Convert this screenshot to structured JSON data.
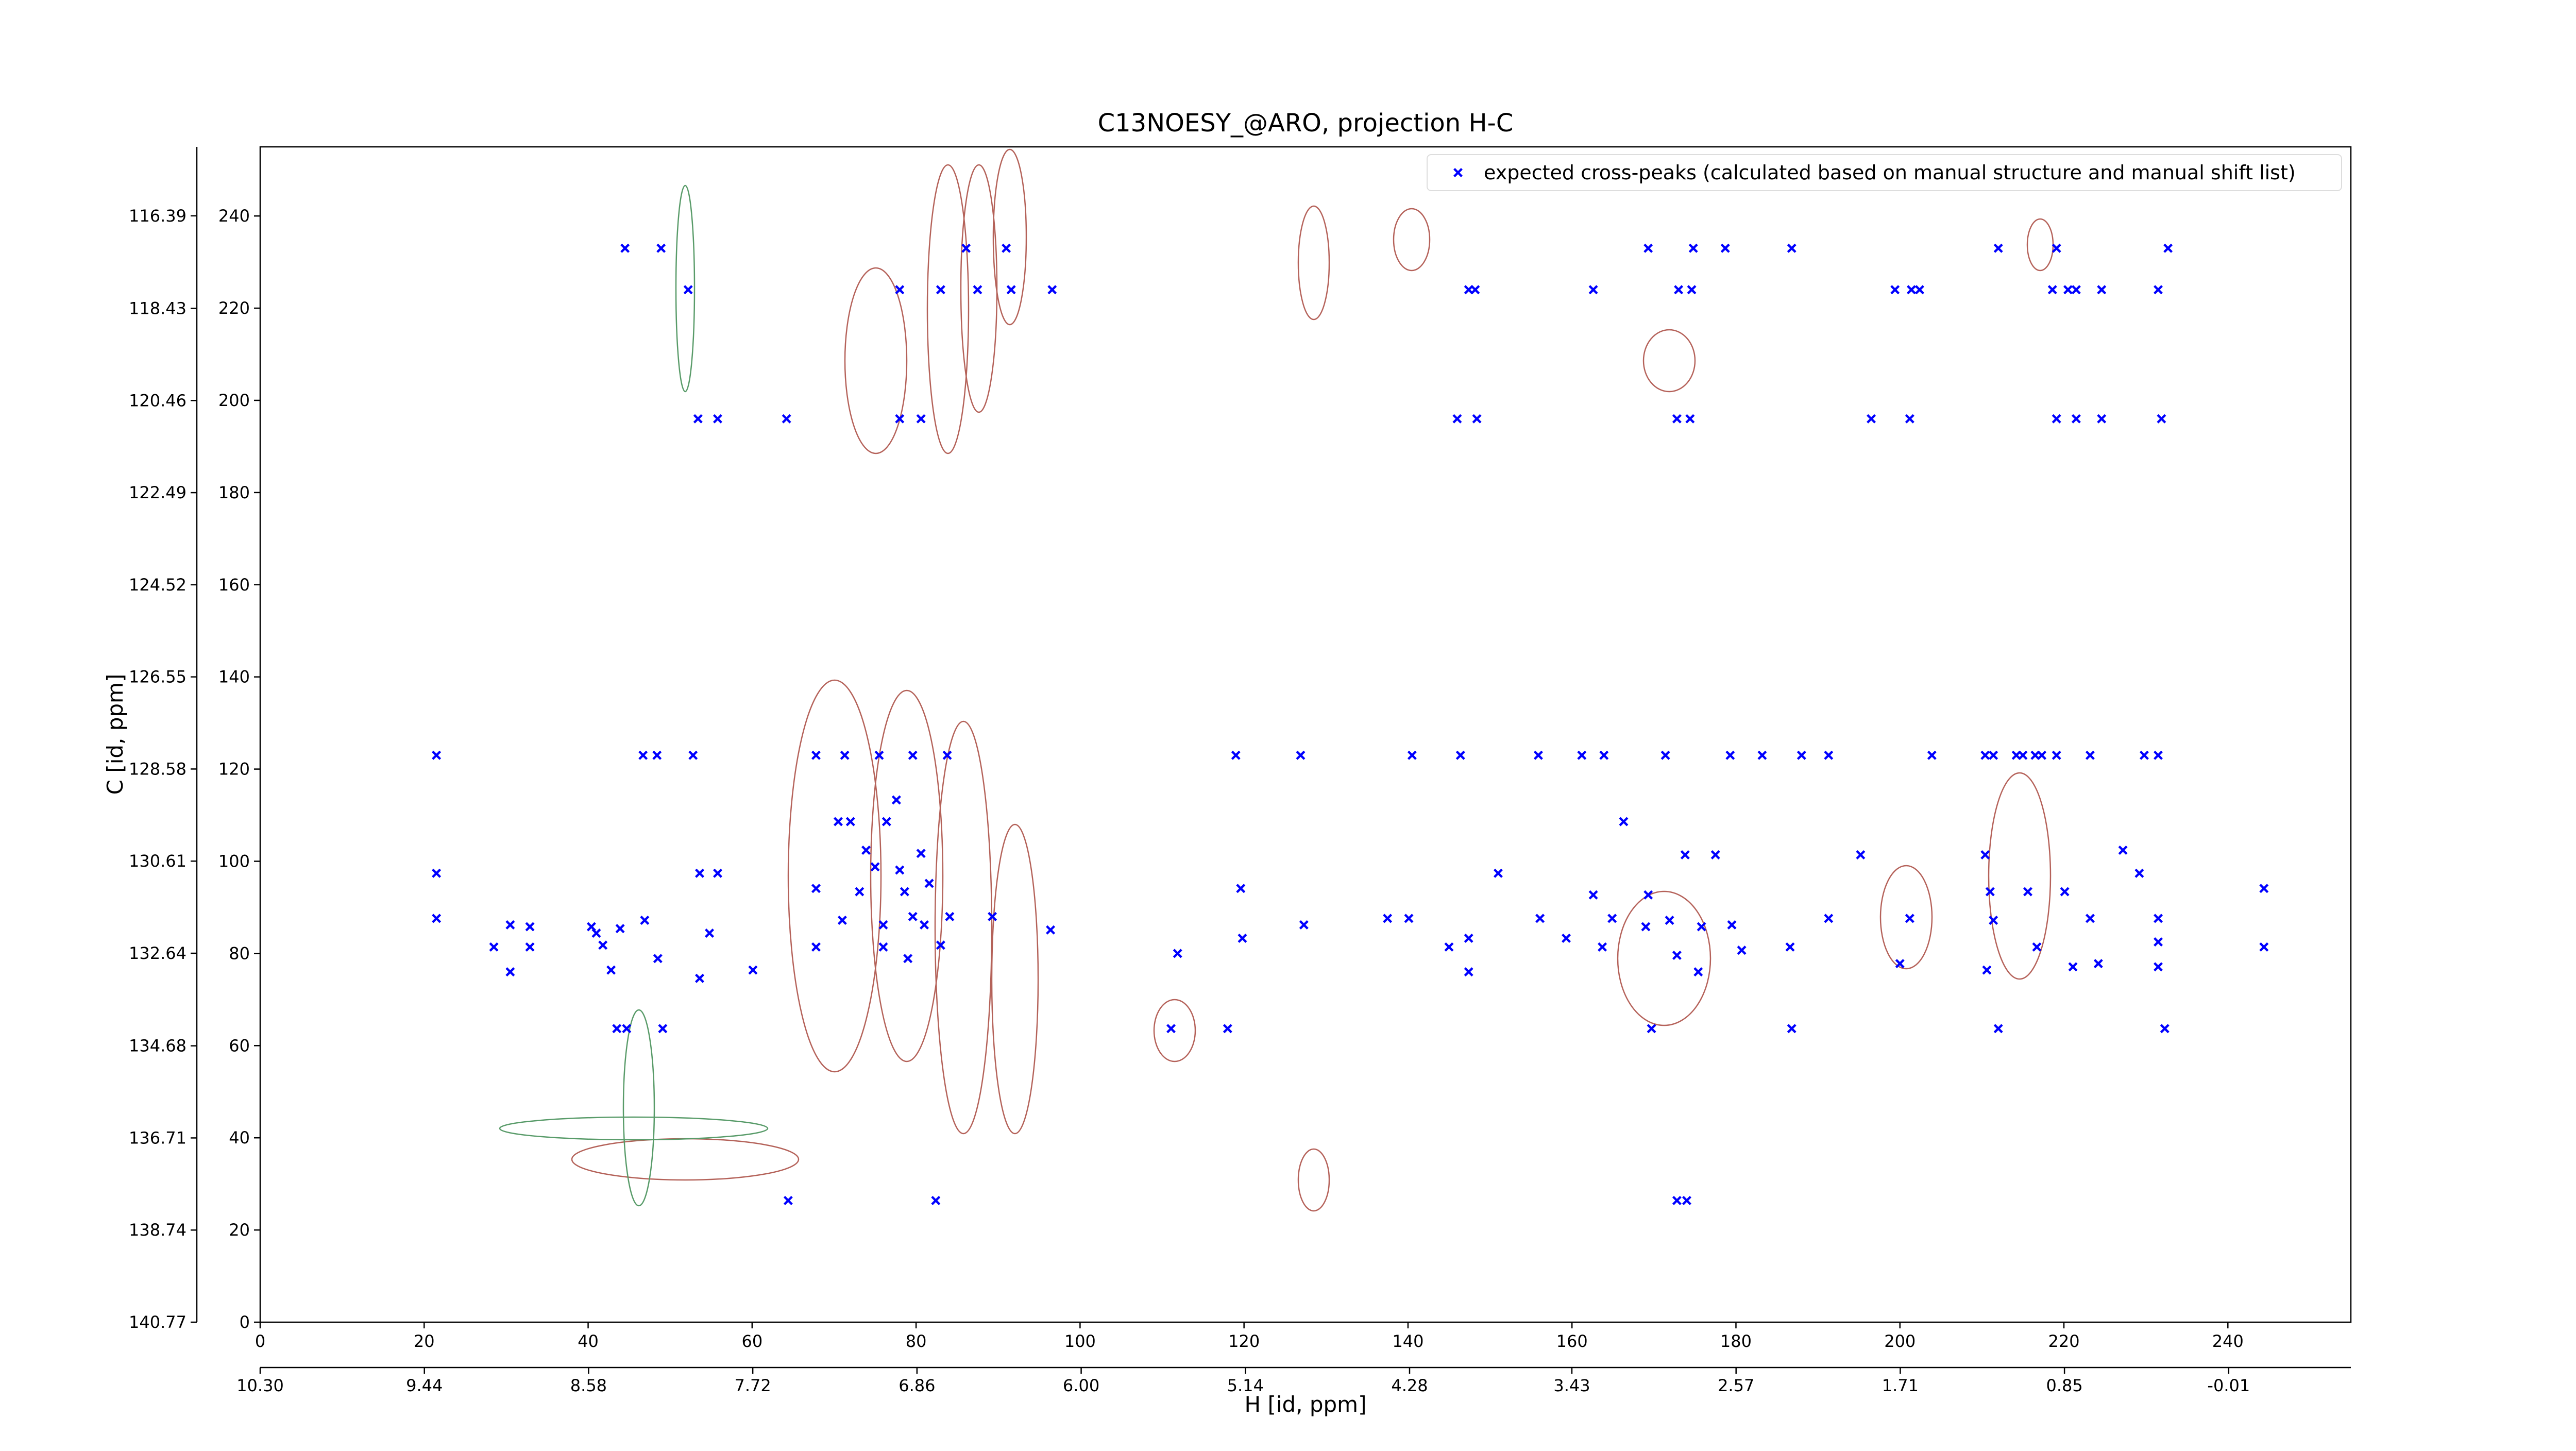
{
  "chart_data": {
    "type": "scatter",
    "title": "C13NOESY_@ARO, projection H-C",
    "x_label": "H [id, ppm]",
    "y_label": "C [id, ppm]",
    "xlim": [
      0,
      255
    ],
    "ylim": [
      0,
      255
    ],
    "xticks": [
      0,
      20,
      40,
      60,
      80,
      100,
      120,
      140,
      160,
      180,
      200,
      220,
      240
    ],
    "yticks": [
      0,
      20,
      40,
      60,
      80,
      100,
      120,
      140,
      160,
      180,
      200,
      220,
      240
    ],
    "x2lim": [
      10.3,
      -0.65
    ],
    "x2ticks": [
      {
        "value": 10.3,
        "label": "10.30"
      },
      9.44,
      8.58,
      7.72,
      6.86,
      {
        "value": 6,
        "label": "6.00"
      },
      5.14,
      4.28,
      3.43,
      2.57,
      1.71,
      0.85,
      -0.01
    ],
    "y2lim": [
      140.77,
      114.87
    ],
    "y2ticks": [
      140.77,
      138.74,
      136.71,
      134.68,
      132.64,
      130.61,
      128.58,
      126.55,
      124.52,
      122.49,
      120.46,
      118.43,
      116.39
    ],
    "grid": false,
    "legend": "upper right",
    "series": [
      {
        "name": "expected cross-peaks (calculated based on manual structure and manual shift list)",
        "color": "#0000ff",
        "x": [
          44.5,
          48.9,
          86.1,
          91.0,
          169.3,
          174.8,
          178.7,
          186.8,
          212.0,
          219.1,
          232.7,
          52.2,
          78.0,
          83.0,
          87.5,
          91.6,
          96.6,
          147.4,
          148.2,
          162.6,
          173.0,
          174.6,
          199.4,
          201.4,
          202.4,
          218.6,
          220.5,
          221.5,
          224.6,
          231.5,
          53.4,
          55.8,
          64.2,
          78.0,
          80.6,
          146.0,
          148.4,
          172.8,
          174.4,
          196.5,
          201.2,
          219.1,
          221.5,
          224.6,
          231.9,
          21.5,
          46.7,
          48.4,
          52.8,
          67.8,
          71.3,
          75.5,
          79.6,
          83.8,
          119.0,
          126.9,
          140.5,
          146.4,
          155.9,
          161.2,
          163.9,
          171.4,
          179.3,
          183.2,
          188.0,
          191.3,
          203.9,
          210.4,
          211.4,
          214.2,
          215.0,
          216.5,
          217.3,
          219.1,
          223.2,
          229.8,
          231.5,
          21.5,
          21.5,
          28.5,
          30.5,
          32.9,
          32.9,
          30.5,
          40.4,
          41.0,
          41.8,
          42.8,
          43.9,
          46.9,
          48.5,
          53.6,
          54.8,
          53.6,
          55.8,
          60.1,
          43.5,
          44.7,
          49.1,
          64.4,
          82.4,
          67.8,
          67.8,
          70.5,
          72.0,
          71.0,
          73.1,
          73.9,
          75.0,
          76.0,
          76.0,
          77.6,
          76.4,
          78.0,
          78.6,
          79.6,
          80.6,
          81.0,
          79.0,
          81.6,
          83.0,
          84.1,
          89.3,
          96.4,
          111.9,
          111.1,
          118.0,
          119.6,
          119.8,
          127.3,
          137.5,
          140.1,
          145.0,
          147.4,
          147.4,
          151.0,
          156.1,
          159.3,
          162.6,
          163.7,
          164.9,
          166.3,
          169.0,
          169.3,
          169.7,
          171.9,
          172.8,
          173.8,
          175.8,
          175.4,
          177.5,
          179.5,
          180.7,
          186.6,
          186.8,
          191.3,
          195.2,
          200.0,
          201.2,
          210.4,
          211.0,
          211.4,
          210.6,
          212.0,
          215.6,
          216.7,
          220.1,
          221.1,
          223.2,
          224.2,
          227.2,
          229.2,
          231.5,
          231.5,
          231.5,
          232.3,
          244.4,
          244.4,
          172.8,
          174.0
        ],
        "values": [
          233,
          233,
          233,
          233,
          233,
          233,
          233,
          233,
          233,
          233,
          233,
          224,
          224,
          224,
          224,
          224,
          224,
          224,
          224,
          224,
          224,
          224,
          224,
          224,
          224,
          224,
          224,
          224,
          224,
          224,
          196,
          196,
          196,
          196,
          196,
          196,
          196,
          196,
          196,
          196,
          196,
          196,
          196,
          196,
          196,
          123,
          123,
          123,
          123,
          123,
          123,
          123,
          123,
          123,
          123,
          123,
          123,
          123,
          123,
          123,
          123,
          123,
          123,
          123,
          123,
          123,
          123,
          123,
          123,
          123,
          123,
          123,
          123,
          123,
          123,
          123,
          123,
          97.4,
          87.6,
          81.4,
          76.0,
          81.4,
          85.8,
          86.2,
          85.8,
          84.4,
          81.8,
          76.4,
          85.4,
          87.2,
          78.9,
          74.6,
          84.4,
          97.4,
          97.4,
          76.4,
          63.7,
          63.7,
          63.7,
          26.4,
          26.4,
          94.1,
          81.4,
          108.6,
          108.6,
          87.2,
          93.4,
          102.4,
          98.8,
          86.2,
          81.4,
          113.3,
          108.6,
          98.1,
          93.4,
          88.0,
          101.7,
          86.2,
          78.9,
          95.2,
          81.8,
          88.0,
          88.0,
          85.1,
          80.0,
          63.7,
          63.7,
          94.1,
          83.3,
          86.2,
          87.6,
          87.6,
          81.4,
          76.0,
          83.3,
          97.4,
          87.6,
          83.3,
          92.7,
          81.4,
          87.6,
          108.6,
          85.8,
          92.7,
          63.7,
          87.2,
          79.6,
          101.4,
          85.8,
          76.0,
          101.4,
          86.2,
          80.7,
          81.4,
          63.7,
          87.6,
          101.4,
          77.8,
          87.6,
          101.4,
          93.4,
          87.2,
          76.4,
          63.7,
          93.4,
          81.4,
          93.4,
          77.1,
          87.6,
          77.8,
          102.4,
          97.4,
          87.6,
          82.5,
          77.1,
          63.7,
          94.1,
          81.4,
          26.4,
          26.4
        ]
      }
    ]
  }
}
